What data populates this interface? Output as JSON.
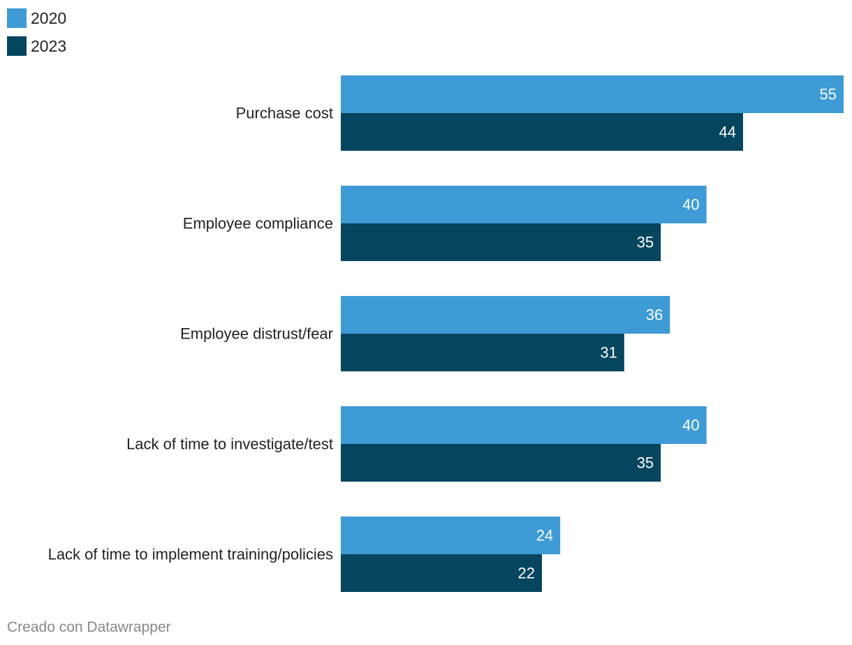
{
  "colors": {
    "series_2020": "#3e9bd6",
    "series_2023": "#06455e",
    "category_label": "#222222",
    "value_label": "#ffffff",
    "footer": "#888888"
  },
  "legend": {
    "items": [
      {
        "label": "2020"
      },
      {
        "label": "2023"
      }
    ]
  },
  "footer": {
    "credit": "Creado con Datawrapper"
  },
  "chart_data": {
    "type": "bar",
    "orientation": "horizontal",
    "title": "",
    "xlabel": "",
    "ylabel": "",
    "xlim": [
      0,
      55
    ],
    "grid": false,
    "legend_position": "top-left",
    "categories": [
      "Purchase cost",
      "Employee compliance",
      "Employee distrust/fear",
      "Lack of time to investigate/test",
      "Lack of time to implement training/policies"
    ],
    "series": [
      {
        "name": "2020",
        "values": [
          55,
          40,
          36,
          40,
          24
        ]
      },
      {
        "name": "2023",
        "values": [
          44,
          35,
          31,
          35,
          22
        ]
      }
    ]
  }
}
